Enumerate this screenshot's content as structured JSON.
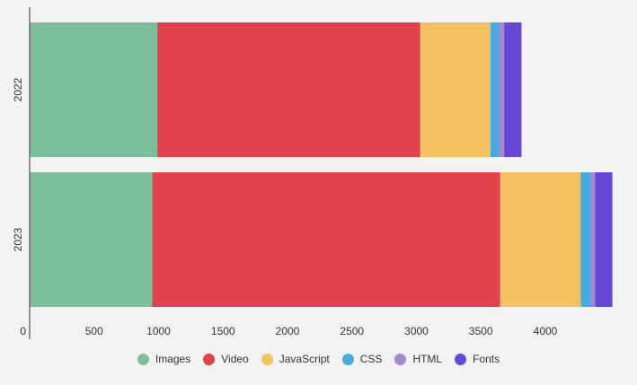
{
  "chart_data": {
    "type": "bar",
    "orientation": "horizontal",
    "stacked": true,
    "categories": [
      "2022",
      "2023"
    ],
    "series": [
      {
        "name": "Images",
        "color": "#7dbf9d",
        "values": [
          990,
          950
        ]
      },
      {
        "name": "Video",
        "color": "#e0434c",
        "values": [
          2040,
          2700
        ]
      },
      {
        "name": "JavaScript",
        "color": "#f3c062",
        "values": [
          545,
          625
        ]
      },
      {
        "name": "CSS",
        "color": "#4aa9df",
        "values": [
          70,
          80
        ]
      },
      {
        "name": "HTML",
        "color": "#a488cf",
        "values": [
          35,
          30
        ]
      },
      {
        "name": "Fonts",
        "color": "#6747d6",
        "values": [
          135,
          135
        ]
      }
    ],
    "x_ticks": [
      "0",
      "500",
      "1000",
      "1500",
      "2000",
      "2500",
      "3000",
      "3500",
      "4000"
    ],
    "xlim": [
      0,
      4550
    ],
    "legend_position": "bottom",
    "grid": false
  }
}
